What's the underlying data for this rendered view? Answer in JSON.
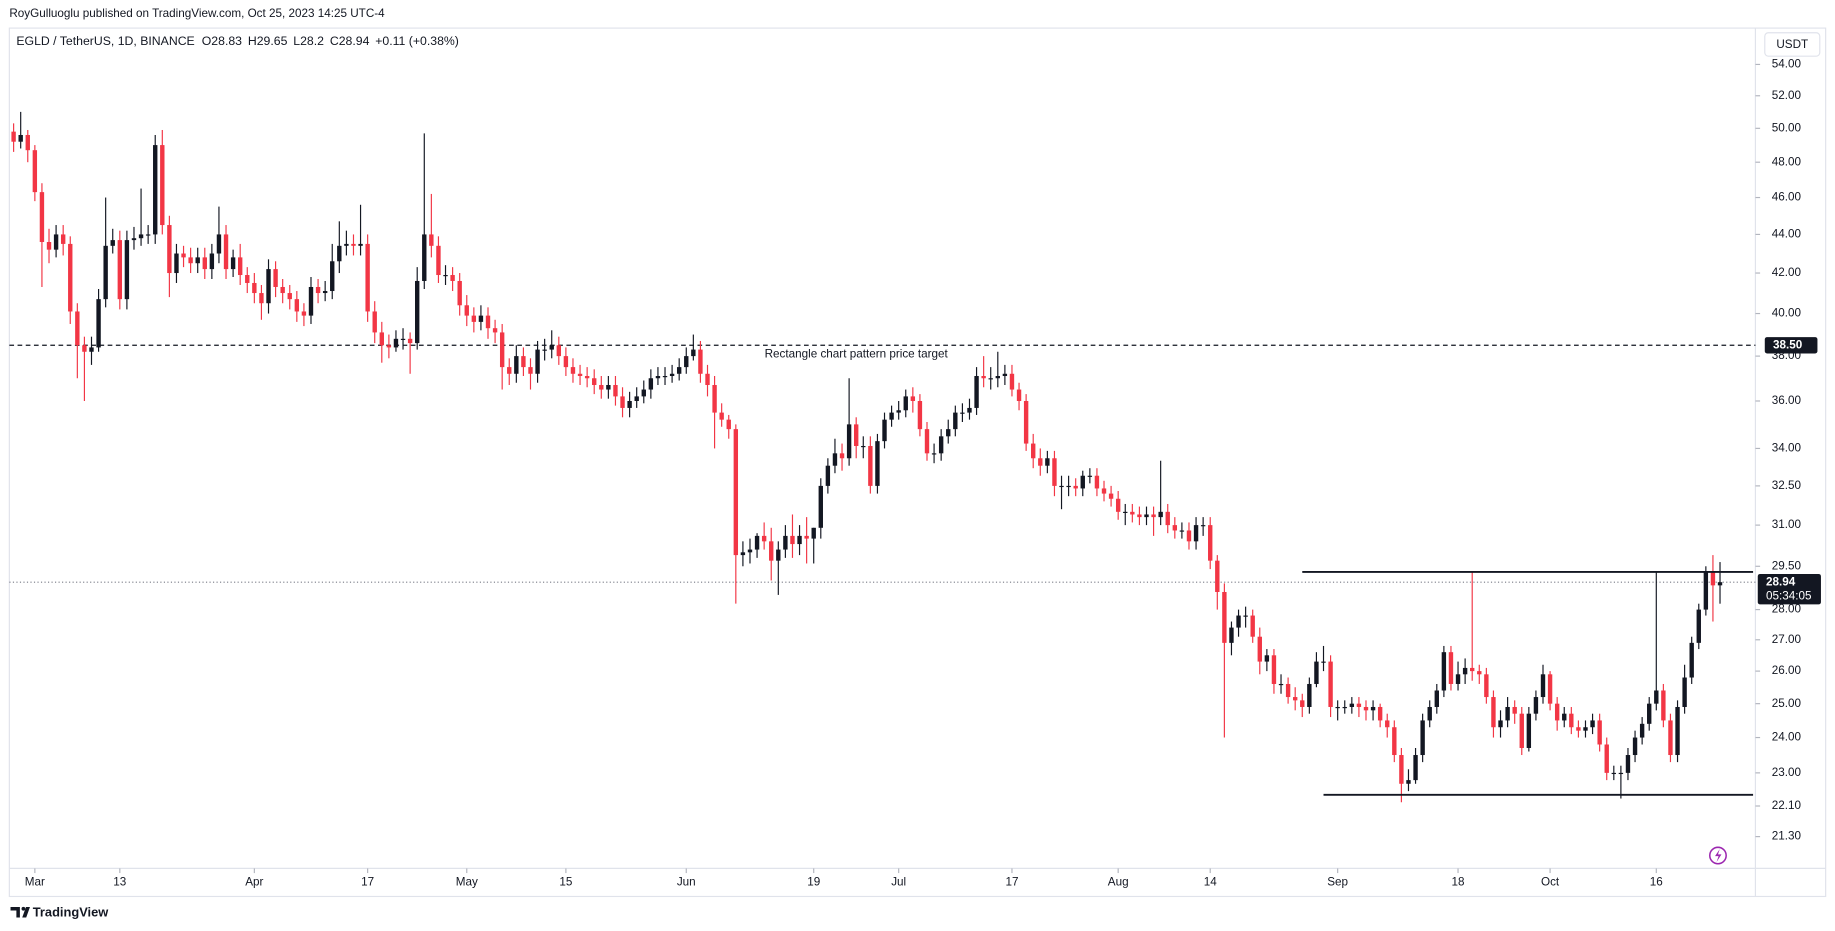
{
  "branding": {
    "publisher_line": "RoyGulluoglu published on TradingView.com, Oct 25, 2023 14:25 UTC-4",
    "footer": "TradingView"
  },
  "chart_data": {
    "type": "candlestick",
    "symbol": "EGLD / TetherUS, 1D, BINANCE",
    "ohlc_letters": [
      "O",
      "H",
      "L",
      "C"
    ],
    "change": "+0.11 (+0.38%)",
    "currency": "USDT",
    "countdown": "05:34:05",
    "annotation": "Rectangle chart pattern price target",
    "log": true,
    "up_color": "#131722",
    "down_color": "#f23645",
    "xlim": [
      -0.6,
      246
    ],
    "ylim": [
      20.5,
      56.1
    ],
    "xticks": [
      {
        "value": 3,
        "label": "Mar"
      },
      {
        "value": 15,
        "label": "13"
      },
      {
        "value": 34,
        "label": "Apr"
      },
      {
        "value": 50,
        "label": "17"
      },
      {
        "value": 64,
        "label": "May"
      },
      {
        "value": 78,
        "label": "15"
      },
      {
        "value": 95,
        "label": "Jun"
      },
      {
        "value": 113,
        "label": "19"
      },
      {
        "value": 125,
        "label": "Jul"
      },
      {
        "value": 141,
        "label": "17"
      },
      {
        "value": 156,
        "label": "Aug"
      },
      {
        "value": 169,
        "label": "14"
      },
      {
        "value": 187,
        "label": "Sep"
      },
      {
        "value": 204,
        "label": "18"
      },
      {
        "value": 217,
        "label": "Oct"
      },
      {
        "value": 232,
        "label": "16"
      }
    ],
    "yticks": [
      {
        "value": 54,
        "label": "54.00"
      },
      {
        "value": 52,
        "label": "52.00"
      },
      {
        "value": 50,
        "label": "50.00"
      },
      {
        "value": 48,
        "label": "48.00"
      },
      {
        "value": 46,
        "label": "46.00"
      },
      {
        "value": 44,
        "label": "44.00"
      },
      {
        "value": 42,
        "label": "42.00"
      },
      {
        "value": 40,
        "label": "40.00"
      },
      {
        "value": 38,
        "label": "38.00"
      },
      {
        "value": 36,
        "label": "36.00"
      },
      {
        "value": 34,
        "label": "34.00"
      },
      {
        "value": 32.5,
        "label": "32.50"
      },
      {
        "value": 31,
        "label": "31.00"
      },
      {
        "value": 29.5,
        "label": "29.50"
      },
      {
        "value": 28,
        "label": "28.00"
      },
      {
        "value": 27,
        "label": "27.00"
      },
      {
        "value": 26,
        "label": "26.00"
      },
      {
        "value": 25,
        "label": "25.00"
      },
      {
        "value": 24,
        "label": "24.00"
      },
      {
        "value": 23,
        "label": "23.00"
      },
      {
        "value": 22.1,
        "label": "22.10"
      },
      {
        "value": 21.3,
        "label": "21.30"
      }
    ],
    "target_line": {
      "value": 38.5,
      "label": "38.50"
    },
    "rectangle_lines": [
      {
        "value": 29.3,
        "start": 182,
        "end": 246
      },
      {
        "value": 22.4,
        "start": 185,
        "end": 246
      }
    ],
    "open": [
      49.8,
      49.2,
      49.6,
      48.7,
      46.3,
      43.6,
      43.2,
      44.0,
      43.5,
      40.1,
      38.5,
      38.2,
      38.4,
      40.7,
      43.4,
      43.7,
      40.7,
      43.7,
      43.8,
      44.0,
      44.0,
      49.0,
      44.5,
      42.0,
      43.0,
      42.8,
      42.5,
      42.8,
      42.2,
      43.0,
      44.0,
      42.2,
      42.8,
      41.9,
      41.5,
      41.0,
      40.5,
      42.2,
      41.3,
      41.0,
      40.7,
      40.1,
      39.9,
      41.3,
      41.0,
      41.1,
      42.6,
      43.4,
      43.5,
      43.4,
      43.5,
      40.1,
      39.1,
      38.5,
      38.4,
      38.8,
      38.8,
      38.6,
      41.6,
      44.0,
      43.4,
      41.9,
      41.9,
      41.6,
      40.4,
      39.9,
      39.6,
      39.9,
      39.3,
      39.1,
      37.5,
      37.2,
      38.0,
      37.5,
      37.2,
      38.3,
      38.3,
      38.5,
      38.0,
      37.5,
      37.2,
      37.1,
      37.0,
      36.7,
      36.5,
      36.7,
      36.2,
      35.7,
      36.0,
      36.2,
      36.5,
      37.0,
      37.1,
      37.1,
      37.2,
      37.5,
      38.0,
      38.3,
      37.2,
      36.7,
      35.5,
      35.2,
      34.8,
      29.9,
      30.0,
      30.1,
      30.6,
      30.4,
      29.7,
      30.1,
      30.6,
      30.3,
      30.6,
      30.5,
      30.9,
      32.5,
      33.3,
      33.8,
      33.6,
      35.0,
      34.1,
      34.1,
      32.5,
      34.3,
      35.2,
      35.5,
      35.6,
      36.2,
      36.0,
      34.8,
      33.8,
      33.8,
      34.5,
      34.8,
      35.5,
      35.5,
      35.7,
      37.1,
      37.0,
      37.0,
      37.1,
      37.2,
      36.5,
      36.0,
      34.2,
      33.6,
      33.3,
      33.6,
      32.5,
      32.5,
      32.5,
      32.4,
      32.9,
      32.9,
      32.4,
      32.2,
      32.0,
      31.5,
      31.5,
      31.4,
      31.3,
      31.4,
      31.3,
      31.5,
      31.0,
      30.8,
      30.8,
      30.4,
      31.0,
      31.0,
      29.7,
      28.6,
      26.9,
      27.4,
      27.8,
      27.8,
      27.1,
      26.3,
      26.5,
      25.6,
      25.6,
      25.2,
      25.1,
      24.9,
      25.6,
      26.3,
      26.3,
      24.9,
      24.9,
      24.9,
      25.0,
      24.9,
      24.8,
      24.9,
      24.5,
      24.3,
      23.5,
      22.7,
      22.8,
      23.5,
      24.5,
      24.9,
      25.4,
      26.6,
      25.6,
      25.9,
      26.1,
      26.0,
      25.9,
      25.2,
      24.3,
      24.5,
      24.9,
      24.7,
      23.7,
      24.7,
      25.2,
      25.9,
      25.0,
      24.5,
      24.7,
      24.3,
      24.2,
      24.3,
      24.5,
      23.8,
      23.0,
      23.0,
      23.0,
      23.5,
      24.0,
      24.4,
      25.0,
      25.4,
      24.5,
      23.5,
      24.9,
      25.8,
      26.9,
      28.0,
      29.3,
      28.83
    ],
    "high": [
      50.3,
      51.0,
      49.9,
      49.0,
      46.8,
      44.3,
      44.5,
      44.5,
      43.9,
      40.5,
      38.9,
      38.9,
      41.2,
      46.0,
      44.3,
      44.2,
      44.2,
      44.4,
      46.5,
      44.5,
      49.6,
      49.9,
      45.0,
      43.5,
      43.4,
      43.3,
      43.3,
      43.3,
      43.5,
      45.5,
      44.5,
      43.2,
      43.5,
      42.3,
      42.0,
      41.4,
      42.7,
      42.6,
      41.7,
      41.4,
      41.1,
      40.5,
      41.8,
      41.7,
      41.6,
      43.5,
      44.7,
      44.2,
      44.0,
      45.6,
      44.0,
      40.6,
      39.6,
      39.0,
      39.2,
      39.3,
      39.1,
      42.3,
      49.7,
      46.2,
      43.9,
      42.4,
      42.3,
      42.0,
      40.9,
      40.3,
      40.4,
      40.3,
      39.7,
      39.5,
      37.9,
      38.5,
      38.4,
      37.9,
      38.7,
      38.8,
      39.2,
      38.9,
      38.4,
      37.9,
      37.6,
      37.5,
      37.4,
      37.1,
      37.1,
      37.1,
      36.6,
      36.4,
      36.6,
      36.9,
      37.4,
      37.5,
      37.5,
      37.6,
      37.9,
      38.4,
      39.0,
      38.7,
      37.6,
      37.1,
      35.9,
      35.4,
      35.0,
      30.4,
      30.5,
      30.7,
      31.1,
      30.9,
      30.4,
      31.0,
      31.4,
      31.0,
      31.3,
      30.9,
      32.8,
      33.6,
      34.4,
      34.2,
      37.0,
      35.3,
      34.5,
      34.5,
      34.6,
      35.5,
      35.8,
      36.0,
      36.5,
      36.6,
      36.3,
      35.1,
      34.2,
      34.8,
      35.2,
      35.8,
      35.9,
      36.1,
      37.5,
      38.0,
      37.5,
      38.2,
      37.6,
      37.6,
      36.8,
      36.3,
      34.6,
      34.0,
      33.9,
      33.9,
      32.9,
      32.9,
      32.8,
      33.1,
      33.2,
      33.2,
      32.7,
      32.5,
      32.3,
      31.8,
      31.8,
      31.7,
      31.7,
      31.7,
      33.5,
      31.8,
      31.3,
      31.1,
      31.1,
      31.3,
      31.3,
      31.3,
      29.9,
      28.9,
      27.6,
      28.0,
      28.1,
      28.0,
      27.4,
      26.7,
      26.7,
      25.9,
      25.8,
      25.5,
      25.3,
      25.8,
      26.6,
      26.8,
      26.5,
      25.1,
      25.1,
      25.2,
      25.2,
      25.1,
      25.1,
      25.0,
      24.7,
      24.5,
      23.7,
      23.1,
      23.7,
      24.7,
      25.1,
      25.6,
      26.8,
      26.8,
      26.3,
      26.4,
      29.3,
      26.2,
      26.1,
      25.4,
      24.8,
      25.2,
      25.1,
      24.9,
      24.9,
      25.4,
      26.2,
      26.0,
      25.2,
      24.9,
      24.9,
      24.5,
      24.5,
      24.7,
      24.7,
      24.0,
      23.2,
      23.2,
      23.7,
      24.2,
      24.6,
      25.2,
      29.3,
      25.6,
      24.7,
      25.1,
      26.2,
      27.1,
      28.2,
      29.5,
      29.9,
      29.65
    ],
    "low": [
      48.6,
      48.8,
      48.0,
      45.8,
      41.3,
      42.5,
      42.8,
      42.9,
      39.5,
      37.0,
      36.0,
      37.6,
      38.2,
      40.3,
      43.0,
      40.2,
      40.2,
      43.2,
      43.4,
      43.5,
      43.5,
      44.0,
      40.8,
      41.5,
      42.3,
      42.0,
      42.0,
      41.7,
      41.7,
      42.5,
      41.7,
      41.8,
      41.4,
      41.0,
      40.5,
      39.7,
      40.0,
      40.8,
      40.5,
      40.2,
      39.6,
      39.4,
      39.5,
      40.5,
      40.6,
      40.7,
      42.0,
      42.9,
      42.9,
      42.9,
      39.6,
      38.6,
      37.7,
      37.9,
      38.2,
      38.3,
      37.2,
      38.3,
      41.2,
      42.8,
      41.5,
      41.4,
      41.1,
      39.9,
      39.4,
      39.1,
      39.2,
      38.8,
      38.6,
      36.5,
      36.7,
      36.8,
      37.1,
      36.5,
      36.8,
      37.8,
      37.9,
      37.6,
      37.1,
      36.8,
      36.7,
      36.6,
      36.3,
      36.1,
      36.1,
      35.8,
      35.3,
      35.3,
      35.7,
      35.9,
      36.1,
      36.7,
      36.7,
      36.8,
      36.9,
      37.2,
      37.8,
      36.8,
      36.2,
      34.0,
      34.9,
      34.4,
      28.2,
      29.5,
      29.6,
      29.8,
      30.1,
      29.0,
      28.5,
      29.8,
      29.8,
      29.9,
      29.6,
      29.6,
      30.5,
      32.2,
      33.0,
      33.1,
      33.3,
      33.6,
      33.6,
      32.2,
      32.2,
      34.0,
      34.9,
      35.2,
      35.3,
      35.5,
      34.5,
      33.5,
      33.4,
      33.5,
      34.2,
      34.5,
      35.1,
      35.2,
      35.4,
      36.6,
      36.5,
      36.6,
      36.7,
      36.2,
      35.6,
      33.9,
      33.2,
      32.9,
      33.0,
      32.1,
      31.6,
      32.1,
      32.1,
      32.1,
      32.6,
      32.1,
      31.9,
      31.7,
      31.2,
      31.0,
      31.1,
      31.0,
      31.0,
      30.6,
      31.0,
      30.7,
      30.5,
      30.5,
      30.1,
      30.1,
      30.6,
      29.4,
      28.0,
      24.0,
      26.5,
      27.1,
      27.4,
      26.9,
      25.9,
      26.0,
      25.3,
      25.3,
      25.0,
      24.8,
      24.6,
      24.7,
      25.5,
      26.0,
      24.6,
      24.5,
      24.7,
      24.7,
      24.6,
      24.5,
      24.5,
      24.3,
      24.0,
      23.3,
      22.2,
      22.5,
      22.7,
      23.3,
      24.3,
      24.7,
      25.2,
      25.4,
      25.4,
      25.6,
      25.7,
      25.6,
      25.0,
      24.0,
      24.0,
      24.3,
      24.4,
      23.5,
      23.6,
      24.5,
      25.0,
      24.8,
      24.2,
      24.3,
      24.1,
      24.0,
      24.0,
      24.1,
      23.6,
      22.8,
      22.8,
      22.3,
      22.8,
      23.3,
      23.8,
      24.2,
      24.8,
      24.3,
      23.3,
      23.3,
      24.7,
      25.6,
      26.7,
      27.8,
      27.6,
      28.2
    ],
    "close": [
      49.2,
      49.6,
      48.7,
      46.3,
      43.6,
      43.2,
      44.0,
      43.5,
      40.1,
      38.5,
      38.2,
      38.4,
      40.7,
      43.4,
      43.7,
      40.7,
      43.7,
      43.8,
      44.0,
      44.0,
      49.0,
      44.5,
      42.0,
      43.0,
      42.8,
      42.5,
      42.8,
      42.2,
      43.0,
      44.0,
      42.2,
      42.8,
      41.9,
      41.5,
      41.0,
      40.5,
      42.2,
      41.3,
      41.0,
      40.7,
      40.1,
      39.9,
      41.3,
      41.0,
      41.1,
      42.6,
      43.4,
      43.5,
      43.4,
      43.5,
      40.1,
      39.1,
      38.5,
      38.4,
      38.8,
      38.8,
      38.6,
      41.6,
      44.0,
      43.4,
      41.9,
      41.9,
      41.6,
      40.4,
      39.9,
      39.6,
      39.9,
      39.3,
      39.1,
      37.5,
      37.2,
      38.0,
      37.5,
      37.2,
      38.3,
      38.3,
      38.5,
      38.0,
      37.5,
      37.2,
      37.1,
      37.0,
      36.7,
      36.5,
      36.7,
      36.2,
      35.7,
      36.0,
      36.2,
      36.5,
      37.0,
      37.1,
      37.1,
      37.2,
      37.5,
      38.0,
      38.3,
      37.2,
      36.7,
      35.5,
      35.2,
      34.8,
      29.9,
      30.0,
      30.1,
      30.6,
      30.4,
      29.7,
      30.1,
      30.6,
      30.3,
      30.6,
      30.5,
      30.9,
      32.5,
      33.3,
      33.8,
      33.6,
      35.0,
      34.1,
      34.1,
      32.5,
      34.3,
      35.2,
      35.5,
      35.6,
      36.2,
      36.0,
      34.8,
      33.8,
      33.8,
      34.5,
      34.8,
      35.5,
      35.5,
      35.7,
      37.1,
      37.0,
      37.0,
      37.1,
      37.2,
      36.5,
      36.0,
      34.2,
      33.6,
      33.3,
      33.6,
      32.5,
      32.5,
      32.5,
      32.4,
      32.9,
      32.9,
      32.4,
      32.2,
      32.0,
      31.5,
      31.5,
      31.4,
      31.3,
      31.4,
      31.3,
      31.5,
      31.0,
      30.8,
      30.8,
      30.4,
      31.0,
      31.0,
      29.7,
      28.6,
      26.9,
      27.4,
      27.8,
      27.8,
      27.1,
      26.3,
      26.5,
      25.6,
      25.6,
      25.2,
      25.1,
      24.9,
      25.6,
      26.3,
      26.3,
      24.9,
      24.9,
      24.9,
      25.0,
      24.9,
      24.8,
      24.9,
      24.5,
      24.3,
      23.5,
      22.7,
      22.8,
      23.5,
      24.5,
      24.9,
      25.4,
      26.6,
      25.6,
      25.9,
      26.1,
      26.0,
      25.9,
      25.2,
      24.3,
      24.5,
      24.9,
      24.7,
      23.7,
      24.7,
      25.2,
      25.9,
      25.0,
      24.5,
      24.7,
      24.3,
      24.2,
      24.3,
      24.5,
      23.8,
      23.0,
      23.0,
      23.0,
      23.5,
      24.0,
      24.4,
      25.0,
      25.4,
      24.5,
      23.5,
      24.9,
      25.8,
      26.9,
      28.0,
      29.3,
      28.83,
      28.94
    ]
  }
}
